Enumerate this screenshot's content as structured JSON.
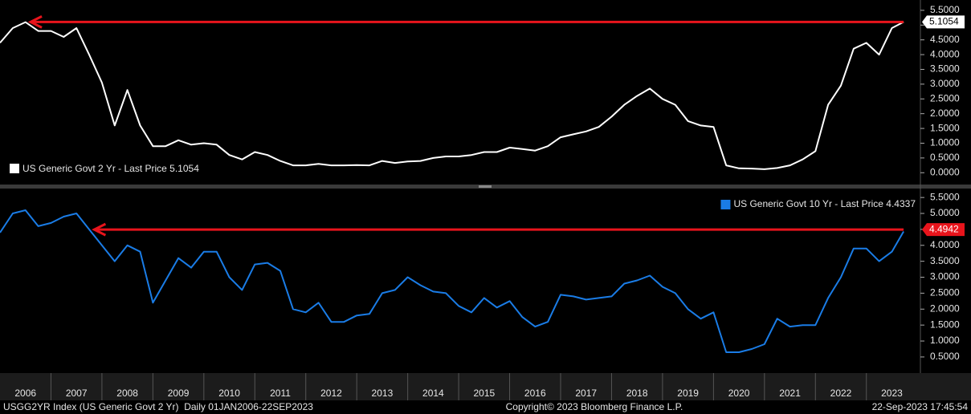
{
  "chart_data": [
    {
      "type": "line",
      "x": [
        2006,
        2006.25,
        2006.5,
        2006.75,
        2007,
        2007.25,
        2007.5,
        2007.75,
        2008,
        2008.25,
        2008.5,
        2008.75,
        2009,
        2009.25,
        2009.5,
        2009.75,
        2010,
        2010.25,
        2010.5,
        2010.75,
        2011,
        2011.25,
        2011.5,
        2011.75,
        2012,
        2012.25,
        2012.5,
        2012.75,
        2013,
        2013.25,
        2013.5,
        2013.75,
        2014,
        2014.25,
        2014.5,
        2014.75,
        2015,
        2015.25,
        2015.5,
        2015.75,
        2016,
        2016.25,
        2016.5,
        2016.75,
        2017,
        2017.25,
        2017.5,
        2017.75,
        2018,
        2018.25,
        2018.5,
        2018.75,
        2019,
        2019.25,
        2019.5,
        2019.75,
        2020,
        2020.25,
        2020.5,
        2020.75,
        2021,
        2021.25,
        2021.5,
        2021.75,
        2022,
        2022.25,
        2022.5,
        2022.75,
        2023,
        2023.25,
        2023.5,
        2023.73
      ],
      "series": [
        {
          "name": "US Generic Govt 2 Yr - Last Price 5.1054",
          "color": "#ffffff",
          "values": [
            4.4,
            4.9,
            5.1,
            4.8,
            4.8,
            4.6,
            4.9,
            4.0,
            3.05,
            1.6,
            2.8,
            1.6,
            0.9,
            0.9,
            1.1,
            0.95,
            1.0,
            0.95,
            0.6,
            0.45,
            0.7,
            0.6,
            0.4,
            0.25,
            0.25,
            0.3,
            0.25,
            0.25,
            0.26,
            0.25,
            0.4,
            0.33,
            0.38,
            0.4,
            0.5,
            0.55,
            0.55,
            0.6,
            0.7,
            0.7,
            0.85,
            0.8,
            0.75,
            0.9,
            1.2,
            1.3,
            1.4,
            1.55,
            1.9,
            2.3,
            2.6,
            2.85,
            2.5,
            2.3,
            1.75,
            1.6,
            1.55,
            0.25,
            0.15,
            0.14,
            0.12,
            0.16,
            0.25,
            0.45,
            0.73,
            2.3,
            2.95,
            4.2,
            4.4,
            4.0,
            4.9,
            5.1054
          ]
        }
      ],
      "xlim": [
        2006,
        2024.06
      ],
      "ylim": [
        -0.4,
        5.85
      ],
      "yticks": [
        {
          "value": 0,
          "label": "0.0000"
        },
        {
          "value": 0.5,
          "label": "0.5000"
        },
        {
          "value": 1,
          "label": "1.0000"
        },
        {
          "value": 1.5,
          "label": "1.5000"
        },
        {
          "value": 2,
          "label": "2.0000"
        },
        {
          "value": 2.5,
          "label": "2.5000"
        },
        {
          "value": 3,
          "label": "3.0000"
        },
        {
          "value": 3.5,
          "label": "3.5000"
        },
        {
          "value": 4,
          "label": "4.0000"
        },
        {
          "value": 4.5,
          "label": "4.5000"
        },
        {
          "value": 5,
          "label": "5.0000"
        },
        {
          "value": 5.5,
          "label": "5.5000"
        }
      ],
      "hline": {
        "y": 5.1054,
        "x": [
          2006.6,
          2023.73
        ],
        "color": "#e8141c"
      },
      "legend": "bottom-left"
    },
    {
      "type": "line",
      "x": [
        2006,
        2006.25,
        2006.5,
        2006.75,
        2007,
        2007.25,
        2007.5,
        2007.75,
        2008,
        2008.25,
        2008.5,
        2008.75,
        2009,
        2009.25,
        2009.5,
        2009.75,
        2010,
        2010.25,
        2010.5,
        2010.75,
        2011,
        2011.25,
        2011.5,
        2011.75,
        2012,
        2012.25,
        2012.5,
        2012.75,
        2013,
        2013.25,
        2013.5,
        2013.75,
        2014,
        2014.25,
        2014.5,
        2014.75,
        2015,
        2015.25,
        2015.5,
        2015.75,
        2016,
        2016.25,
        2016.5,
        2016.75,
        2017,
        2017.25,
        2017.5,
        2017.75,
        2018,
        2018.25,
        2018.5,
        2018.75,
        2019,
        2019.25,
        2019.5,
        2019.75,
        2020,
        2020.25,
        2020.5,
        2020.75,
        2021,
        2021.25,
        2021.5,
        2021.75,
        2022,
        2022.25,
        2022.5,
        2022.75,
        2023,
        2023.25,
        2023.5,
        2023.73
      ],
      "series": [
        {
          "name": "US Generic Govt 10 Yr - Last Price 4.4337",
          "color": "#1a7ce6",
          "values": [
            4.4,
            5.0,
            5.1,
            4.6,
            4.7,
            4.9,
            5.0,
            4.5,
            4.0,
            3.5,
            4.0,
            3.8,
            2.2,
            2.9,
            3.6,
            3.3,
            3.8,
            3.8,
            3.0,
            2.6,
            3.4,
            3.45,
            3.2,
            2.0,
            1.9,
            2.2,
            1.6,
            1.6,
            1.8,
            1.85,
            2.5,
            2.6,
            3.0,
            2.75,
            2.55,
            2.5,
            2.1,
            1.9,
            2.35,
            2.05,
            2.25,
            1.75,
            1.45,
            1.6,
            2.45,
            2.4,
            2.3,
            2.35,
            2.4,
            2.8,
            2.9,
            3.05,
            2.7,
            2.5,
            2.0,
            1.7,
            1.9,
            0.65,
            0.65,
            0.75,
            0.9,
            1.7,
            1.45,
            1.5,
            1.5,
            2.35,
            3.0,
            3.9,
            3.9,
            3.5,
            3.8,
            4.4337
          ]
        }
      ],
      "xlim": [
        2006,
        2024.06
      ],
      "ylim": [
        0.02,
        5.78
      ],
      "yticks": [
        {
          "value": 0.5,
          "label": "0.5000"
        },
        {
          "value": 1,
          "label": "1.0000"
        },
        {
          "value": 1.5,
          "label": "1.5000"
        },
        {
          "value": 2,
          "label": "2.0000"
        },
        {
          "value": 2.5,
          "label": "2.5000"
        },
        {
          "value": 3,
          "label": "3.0000"
        },
        {
          "value": 3.5,
          "label": "3.5000"
        },
        {
          "value": 4,
          "label": "4.0000"
        },
        {
          "value": 4.5,
          "label": "4.5000"
        },
        {
          "value": 5,
          "label": "5.0000"
        },
        {
          "value": 5.5,
          "label": "5.5000"
        }
      ],
      "xticks": [
        {
          "value": 2006.5,
          "label": "2006"
        },
        {
          "value": 2007.5,
          "label": "2007"
        },
        {
          "value": 2008.5,
          "label": "2008"
        },
        {
          "value": 2009.5,
          "label": "2009"
        },
        {
          "value": 2010.5,
          "label": "2010"
        },
        {
          "value": 2011.5,
          "label": "2011"
        },
        {
          "value": 2012.5,
          "label": "2012"
        },
        {
          "value": 2013.5,
          "label": "2013"
        },
        {
          "value": 2014.5,
          "label": "2014"
        },
        {
          "value": 2015.5,
          "label": "2015"
        },
        {
          "value": 2016.5,
          "label": "2016"
        },
        {
          "value": 2017.5,
          "label": "2017"
        },
        {
          "value": 2018.5,
          "label": "2018"
        },
        {
          "value": 2019.5,
          "label": "2019"
        },
        {
          "value": 2020.5,
          "label": "2020"
        },
        {
          "value": 2021.5,
          "label": "2021"
        },
        {
          "value": 2022.5,
          "label": "2022"
        },
        {
          "value": 2023.5,
          "label": "2023"
        }
      ],
      "hline": {
        "y": 4.4942,
        "x": [
          2007.85,
          2023.73
        ],
        "color": "#e8141c"
      },
      "legend": "top-right"
    }
  ],
  "footer": {
    "left": "USGG2YR Index (US Generic Govt 2 Yr)  Daily 01JAN2006-22SEP2023",
    "center": "Copyright© 2023 Bloomberg Finance L.P.",
    "right": "22-Sep-2023 17:45:54"
  }
}
